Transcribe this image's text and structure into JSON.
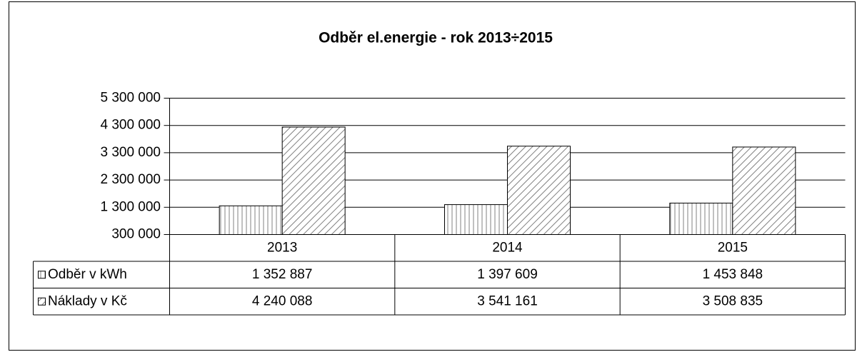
{
  "chart_data": {
    "type": "bar",
    "title": "Odběr el.energie  - rok 2013÷2015",
    "categories": [
      "2013",
      "2014",
      "2015"
    ],
    "series": [
      {
        "name": "Odběr v kWh",
        "color": "#808080",
        "pattern": "vertical",
        "values": [
          1352887,
          1397609,
          1453848
        ],
        "value_labels": [
          "1 352 887",
          "1 397 609",
          "1 453 848"
        ]
      },
      {
        "name": "Náklady v Kč",
        "color": "#808080",
        "pattern": "diagonal",
        "values": [
          4240088,
          3541161,
          3508835
        ],
        "value_labels": [
          "4 240 088",
          "3 541 161",
          "3 508 835"
        ]
      }
    ],
    "ylim": [
      300000,
      5300000
    ],
    "yticks": [
      {
        "value": 300000,
        "label": "300 000"
      },
      {
        "value": 1300000,
        "label": "1 300 000"
      },
      {
        "value": 2300000,
        "label": "2 300 000"
      },
      {
        "value": 3300000,
        "label": "3 300 000"
      },
      {
        "value": 4300000,
        "label": "4 300 000"
      },
      {
        "value": 5300000,
        "label": "5 300 000"
      }
    ],
    "grid": true,
    "data_table": true
  }
}
